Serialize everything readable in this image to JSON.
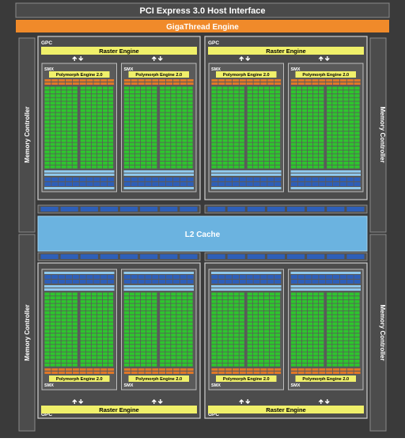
{
  "host_interface": "PCI Express 3.0 Host Interface",
  "gigathread": "GigaThread Engine",
  "gpc_label": "GPC",
  "raster_engine": "Raster Engine",
  "smx_label": "SMX",
  "polymorph_engine": "Polymorph Engine 2.0",
  "l2_cache": "L2 Cache",
  "memory_controller": "Memory Controller",
  "colors": {
    "background": "#3a3a3a",
    "core": "#2ec52e",
    "raster": "#f0f06a",
    "gigathread": "#f08a2a",
    "l2": "#6bb3e0",
    "cache_blue": "#2e5fb8",
    "texture_orange": "#e07828"
  }
}
